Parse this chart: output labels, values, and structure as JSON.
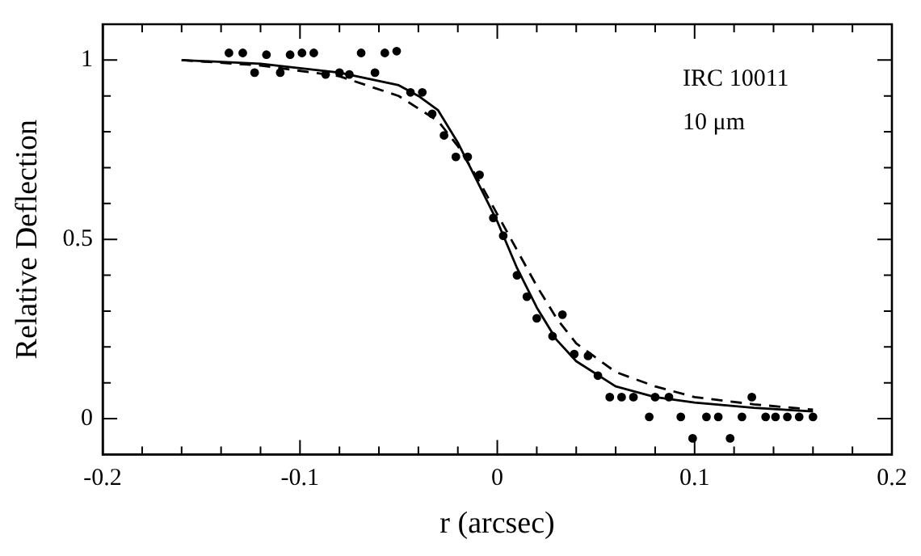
{
  "chart_data": {
    "type": "scatter",
    "xlabel": "r (arcsec)",
    "ylabel": "Relative Deflection",
    "annotations": [
      "IRC 10011",
      "10 μm"
    ],
    "xlim": [
      -0.2,
      0.2
    ],
    "ylim": [
      -0.1,
      1.1
    ],
    "xticks": [
      -0.2,
      {
        "value": -0.18,
        "label": null
      },
      {
        "value": -0.16,
        "label": null
      },
      {
        "value": -0.14,
        "label": null
      },
      {
        "value": -0.12,
        "label": null
      },
      -0.1,
      {
        "value": -0.08,
        "label": null
      },
      {
        "value": -0.06,
        "label": null
      },
      {
        "value": -0.04,
        "label": null
      },
      {
        "value": -0.02,
        "label": null
      },
      0,
      {
        "value": 0.02,
        "label": null
      },
      {
        "value": 0.04,
        "label": null
      },
      {
        "value": 0.06,
        "label": null
      },
      {
        "value": 0.08,
        "label": null
      },
      0.1,
      {
        "value": 0.12,
        "label": null
      },
      {
        "value": 0.14,
        "label": null
      },
      {
        "value": 0.16,
        "label": null
      },
      {
        "value": 0.18,
        "label": null
      },
      0.2
    ],
    "yticks": [
      0,
      {
        "value": 0.1,
        "label": null
      },
      {
        "value": 0.2,
        "label": null
      },
      {
        "value": 0.3,
        "label": null
      },
      {
        "value": 0.4,
        "label": null
      },
      0.5,
      {
        "value": 0.6,
        "label": null
      },
      {
        "value": 0.7,
        "label": null
      },
      {
        "value": 0.8,
        "label": null
      },
      {
        "value": 0.9,
        "label": null
      },
      1
    ],
    "grid": false,
    "legend": false,
    "series": [
      {
        "type": "scatter",
        "color": "#000000",
        "marker": "circle",
        "x": [
          -0.136,
          -0.129,
          -0.123,
          -0.117,
          -0.11,
          -0.105,
          -0.099,
          -0.093,
          -0.087,
          -0.08,
          -0.075,
          -0.069,
          -0.062,
          -0.057,
          -0.051,
          -0.044,
          -0.038,
          -0.033,
          -0.027,
          -0.021,
          -0.015,
          -0.009,
          -0.002,
          0.003,
          0.01,
          0.015,
          0.02,
          0.033,
          0.028,
          0.039,
          0.046,
          0.051,
          0.057,
          0.063,
          0.069,
          0.077,
          0.08,
          0.087,
          0.093,
          0.099,
          0.106,
          0.112,
          0.118,
          0.124,
          0.129,
          0.136,
          0.141,
          0.147,
          0.153,
          0.16
        ],
        "values": [
          1.02,
          1.02,
          0.965,
          1.015,
          0.965,
          1.015,
          1.02,
          1.02,
          0.96,
          0.965,
          0.96,
          1.02,
          0.965,
          1.02,
          1.025,
          0.91,
          0.91,
          0.85,
          0.79,
          0.73,
          0.73,
          0.68,
          0.56,
          0.51,
          0.4,
          0.34,
          0.28,
          0.29,
          0.23,
          0.18,
          0.175,
          0.12,
          0.06,
          0.06,
          0.06,
          0.005,
          0.06,
          0.06,
          0.005,
          -0.055,
          0.005,
          0.005,
          -0.055,
          0.005,
          0.06,
          0.005,
          0.005,
          0.005,
          0.005,
          0.005
        ]
      },
      {
        "type": "line",
        "color": "#000000",
        "marker": "none",
        "line_style": "solid",
        "x": [
          -0.16,
          -0.12,
          -0.08,
          -0.05,
          -0.04,
          -0.03,
          -0.02,
          -0.01,
          0,
          0.01,
          0.02,
          0.03,
          0.04,
          0.06,
          0.08,
          0.1,
          0.13,
          0.16
        ],
        "values": [
          1.0,
          0.99,
          0.965,
          0.93,
          0.9,
          0.86,
          0.77,
          0.66,
          0.55,
          0.42,
          0.31,
          0.22,
          0.16,
          0.09,
          0.06,
          0.045,
          0.03,
          0.02
        ]
      },
      {
        "type": "line",
        "color": "#000000",
        "marker": "none",
        "line_style": "dashed",
        "x": [
          -0.16,
          -0.12,
          -0.08,
          -0.05,
          -0.03,
          -0.02,
          -0.01,
          0,
          0.01,
          0.02,
          0.03,
          0.04,
          0.06,
          0.08,
          0.1,
          0.13,
          0.16
        ],
        "values": [
          1.0,
          0.985,
          0.955,
          0.9,
          0.83,
          0.76,
          0.67,
          0.57,
          0.47,
          0.37,
          0.28,
          0.21,
          0.13,
          0.09,
          0.06,
          0.04,
          0.025
        ]
      }
    ]
  }
}
